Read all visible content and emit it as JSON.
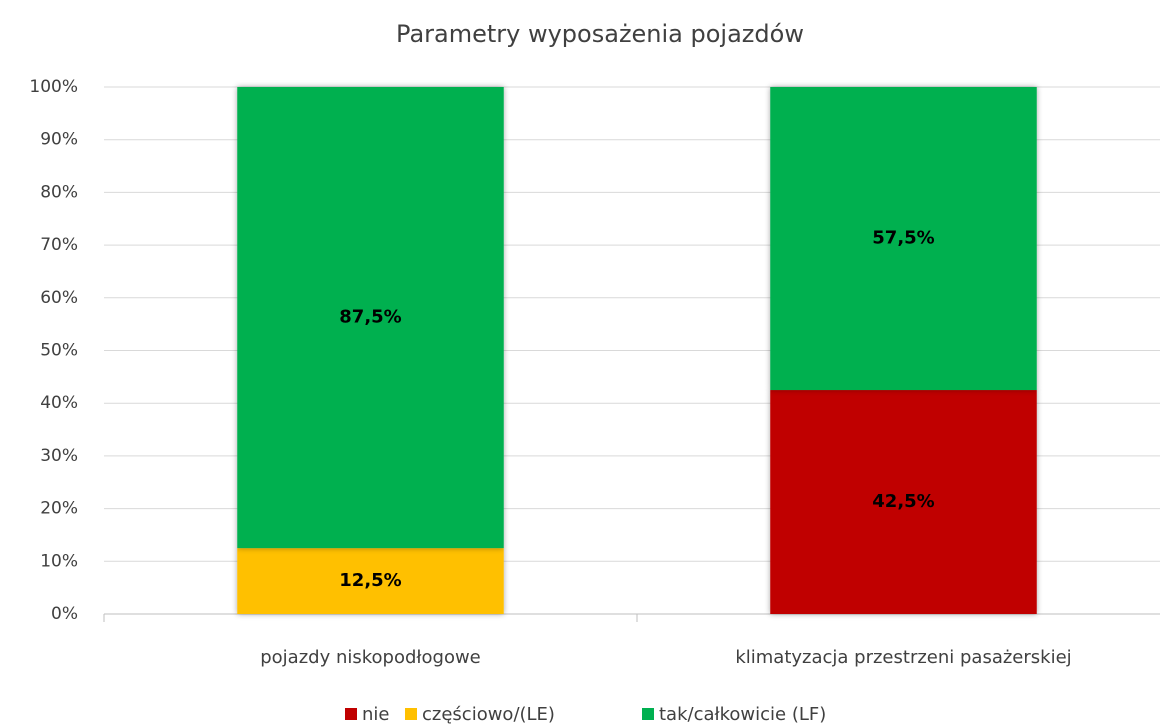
{
  "chart_data": {
    "type": "stacked_bar",
    "title": "Parametry wyposażenia pojazdów",
    "categories": [
      "pojazdy niskopodłogowe",
      "klimatyzacja przestrzeni pasażerskiej"
    ],
    "series": [
      {
        "name": "nie",
        "color": "#c00000",
        "values": [
          0,
          42.5
        ],
        "value_labels": [
          null,
          "42,5%"
        ]
      },
      {
        "name": "częściowo/(LE)",
        "color": "#ffc000",
        "values": [
          12.5,
          0
        ],
        "value_labels": [
          "12,5%",
          null
        ]
      },
      {
        "name": "tak/całkowicie (LF)",
        "color": "#00b050",
        "values": [
          87.5,
          57.5
        ],
        "value_labels": [
          "87,5%",
          "57,5%"
        ]
      }
    ],
    "ylim": [
      0,
      100
    ],
    "yticks": [
      {
        "value": 0,
        "label": "0%"
      },
      {
        "value": 10,
        "label": "10%"
      },
      {
        "value": 20,
        "label": "20%"
      },
      {
        "value": 30,
        "label": "30%"
      },
      {
        "value": 40,
        "label": "40%"
      },
      {
        "value": 50,
        "label": "50%"
      },
      {
        "value": 60,
        "label": "60%"
      },
      {
        "value": 70,
        "label": "70%"
      },
      {
        "value": 80,
        "label": "80%"
      },
      {
        "value": 90,
        "label": "90%"
      },
      {
        "value": 100,
        "label": "100%"
      }
    ],
    "grid": true,
    "legend": "bottom"
  }
}
